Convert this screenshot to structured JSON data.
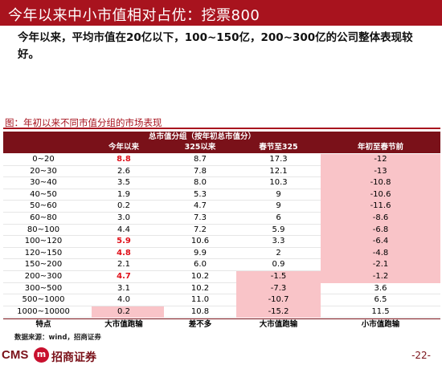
{
  "header": {
    "title": "今年以来中小市值相对占优：挖票800"
  },
  "body_text": "今年以来，平均市值在20亿以下，100~150亿，200~300亿的公司整体表现较好。",
  "figure": {
    "caption": "图：年初以来不同市值分组的市场表现"
  },
  "table": {
    "group_header": "总市值分组（按年初总市值分）",
    "columns": [
      "",
      "今年以来",
      "325以来",
      "春节至325",
      "年初至春节前"
    ],
    "rows": [
      {
        "group": "0~20",
        "ytd": "8.8",
        "since325": "8.7",
        "spring_to_325": "17.3",
        "ytd_to_spring": "-12",
        "ytd_red": true,
        "pink": [
          4
        ]
      },
      {
        "group": "20~30",
        "ytd": "2.6",
        "since325": "7.8",
        "spring_to_325": "12.1",
        "ytd_to_spring": "-13",
        "ytd_red": false,
        "pink": [
          4
        ]
      },
      {
        "group": "30~40",
        "ytd": "3.5",
        "since325": "8.0",
        "spring_to_325": "10.3",
        "ytd_to_spring": "-10.8",
        "ytd_red": false,
        "pink": [
          4
        ]
      },
      {
        "group": "40~50",
        "ytd": "1.9",
        "since325": "5.3",
        "spring_to_325": "9",
        "ytd_to_spring": "-10.6",
        "ytd_red": false,
        "pink": [
          4
        ]
      },
      {
        "group": "50~60",
        "ytd": "0.2",
        "since325": "4.7",
        "spring_to_325": "9",
        "ytd_to_spring": "-11.6",
        "ytd_red": false,
        "pink": [
          4
        ]
      },
      {
        "group": "60~80",
        "ytd": "3.0",
        "since325": "7.3",
        "spring_to_325": "6",
        "ytd_to_spring": "-8.6",
        "ytd_red": false,
        "pink": [
          4
        ]
      },
      {
        "group": "80~100",
        "ytd": "4.4",
        "since325": "7.2",
        "spring_to_325": "5.9",
        "ytd_to_spring": "-6.8",
        "ytd_red": false,
        "pink": [
          4
        ]
      },
      {
        "group": "100~120",
        "ytd": "5.9",
        "since325": "10.6",
        "spring_to_325": "3.3",
        "ytd_to_spring": "-6.4",
        "ytd_red": true,
        "pink": [
          4
        ]
      },
      {
        "group": "120~150",
        "ytd": "4.8",
        "since325": "9.9",
        "spring_to_325": "2",
        "ytd_to_spring": "-4.8",
        "ytd_red": true,
        "pink": [
          4
        ]
      },
      {
        "group": "150~200",
        "ytd": "2.1",
        "since325": "6.0",
        "spring_to_325": "0.9",
        "ytd_to_spring": "-2.1",
        "ytd_red": false,
        "pink": [
          4
        ]
      },
      {
        "group": "200~300",
        "ytd": "4.7",
        "since325": "10.2",
        "spring_to_325": "-1.5",
        "ytd_to_spring": "-1.2",
        "ytd_red": true,
        "pink": [
          3,
          4
        ]
      },
      {
        "group": "300~500",
        "ytd": "3.1",
        "since325": "10.2",
        "spring_to_325": "-7.3",
        "ytd_to_spring": "3.6",
        "ytd_red": false,
        "pink": [
          3
        ]
      },
      {
        "group": "500~1000",
        "ytd": "4.0",
        "since325": "11.0",
        "spring_to_325": "-10.7",
        "ytd_to_spring": "6.5",
        "ytd_red": false,
        "pink": [
          3
        ]
      },
      {
        "group": "1000~10000",
        "ytd": "0.2",
        "since325": "10.8",
        "spring_to_325": "-15.2",
        "ytd_to_spring": "11.5",
        "ytd_red": false,
        "pink": [
          1,
          3
        ]
      }
    ],
    "footer": [
      "特点",
      "大市值跑输",
      "差不多",
      "大市值跑输",
      "小市值跑输"
    ]
  },
  "source": "数据来源：wind，招商证券",
  "logo": {
    "latin": "CMS",
    "mark": "m",
    "chinese": "招商证券"
  },
  "page_number": "-22-",
  "colors": {
    "brand_red": "#a8131e",
    "header_dark": "#7a1119",
    "highlight_pink": "#f9c4c8",
    "value_red": "#e0101a"
  }
}
